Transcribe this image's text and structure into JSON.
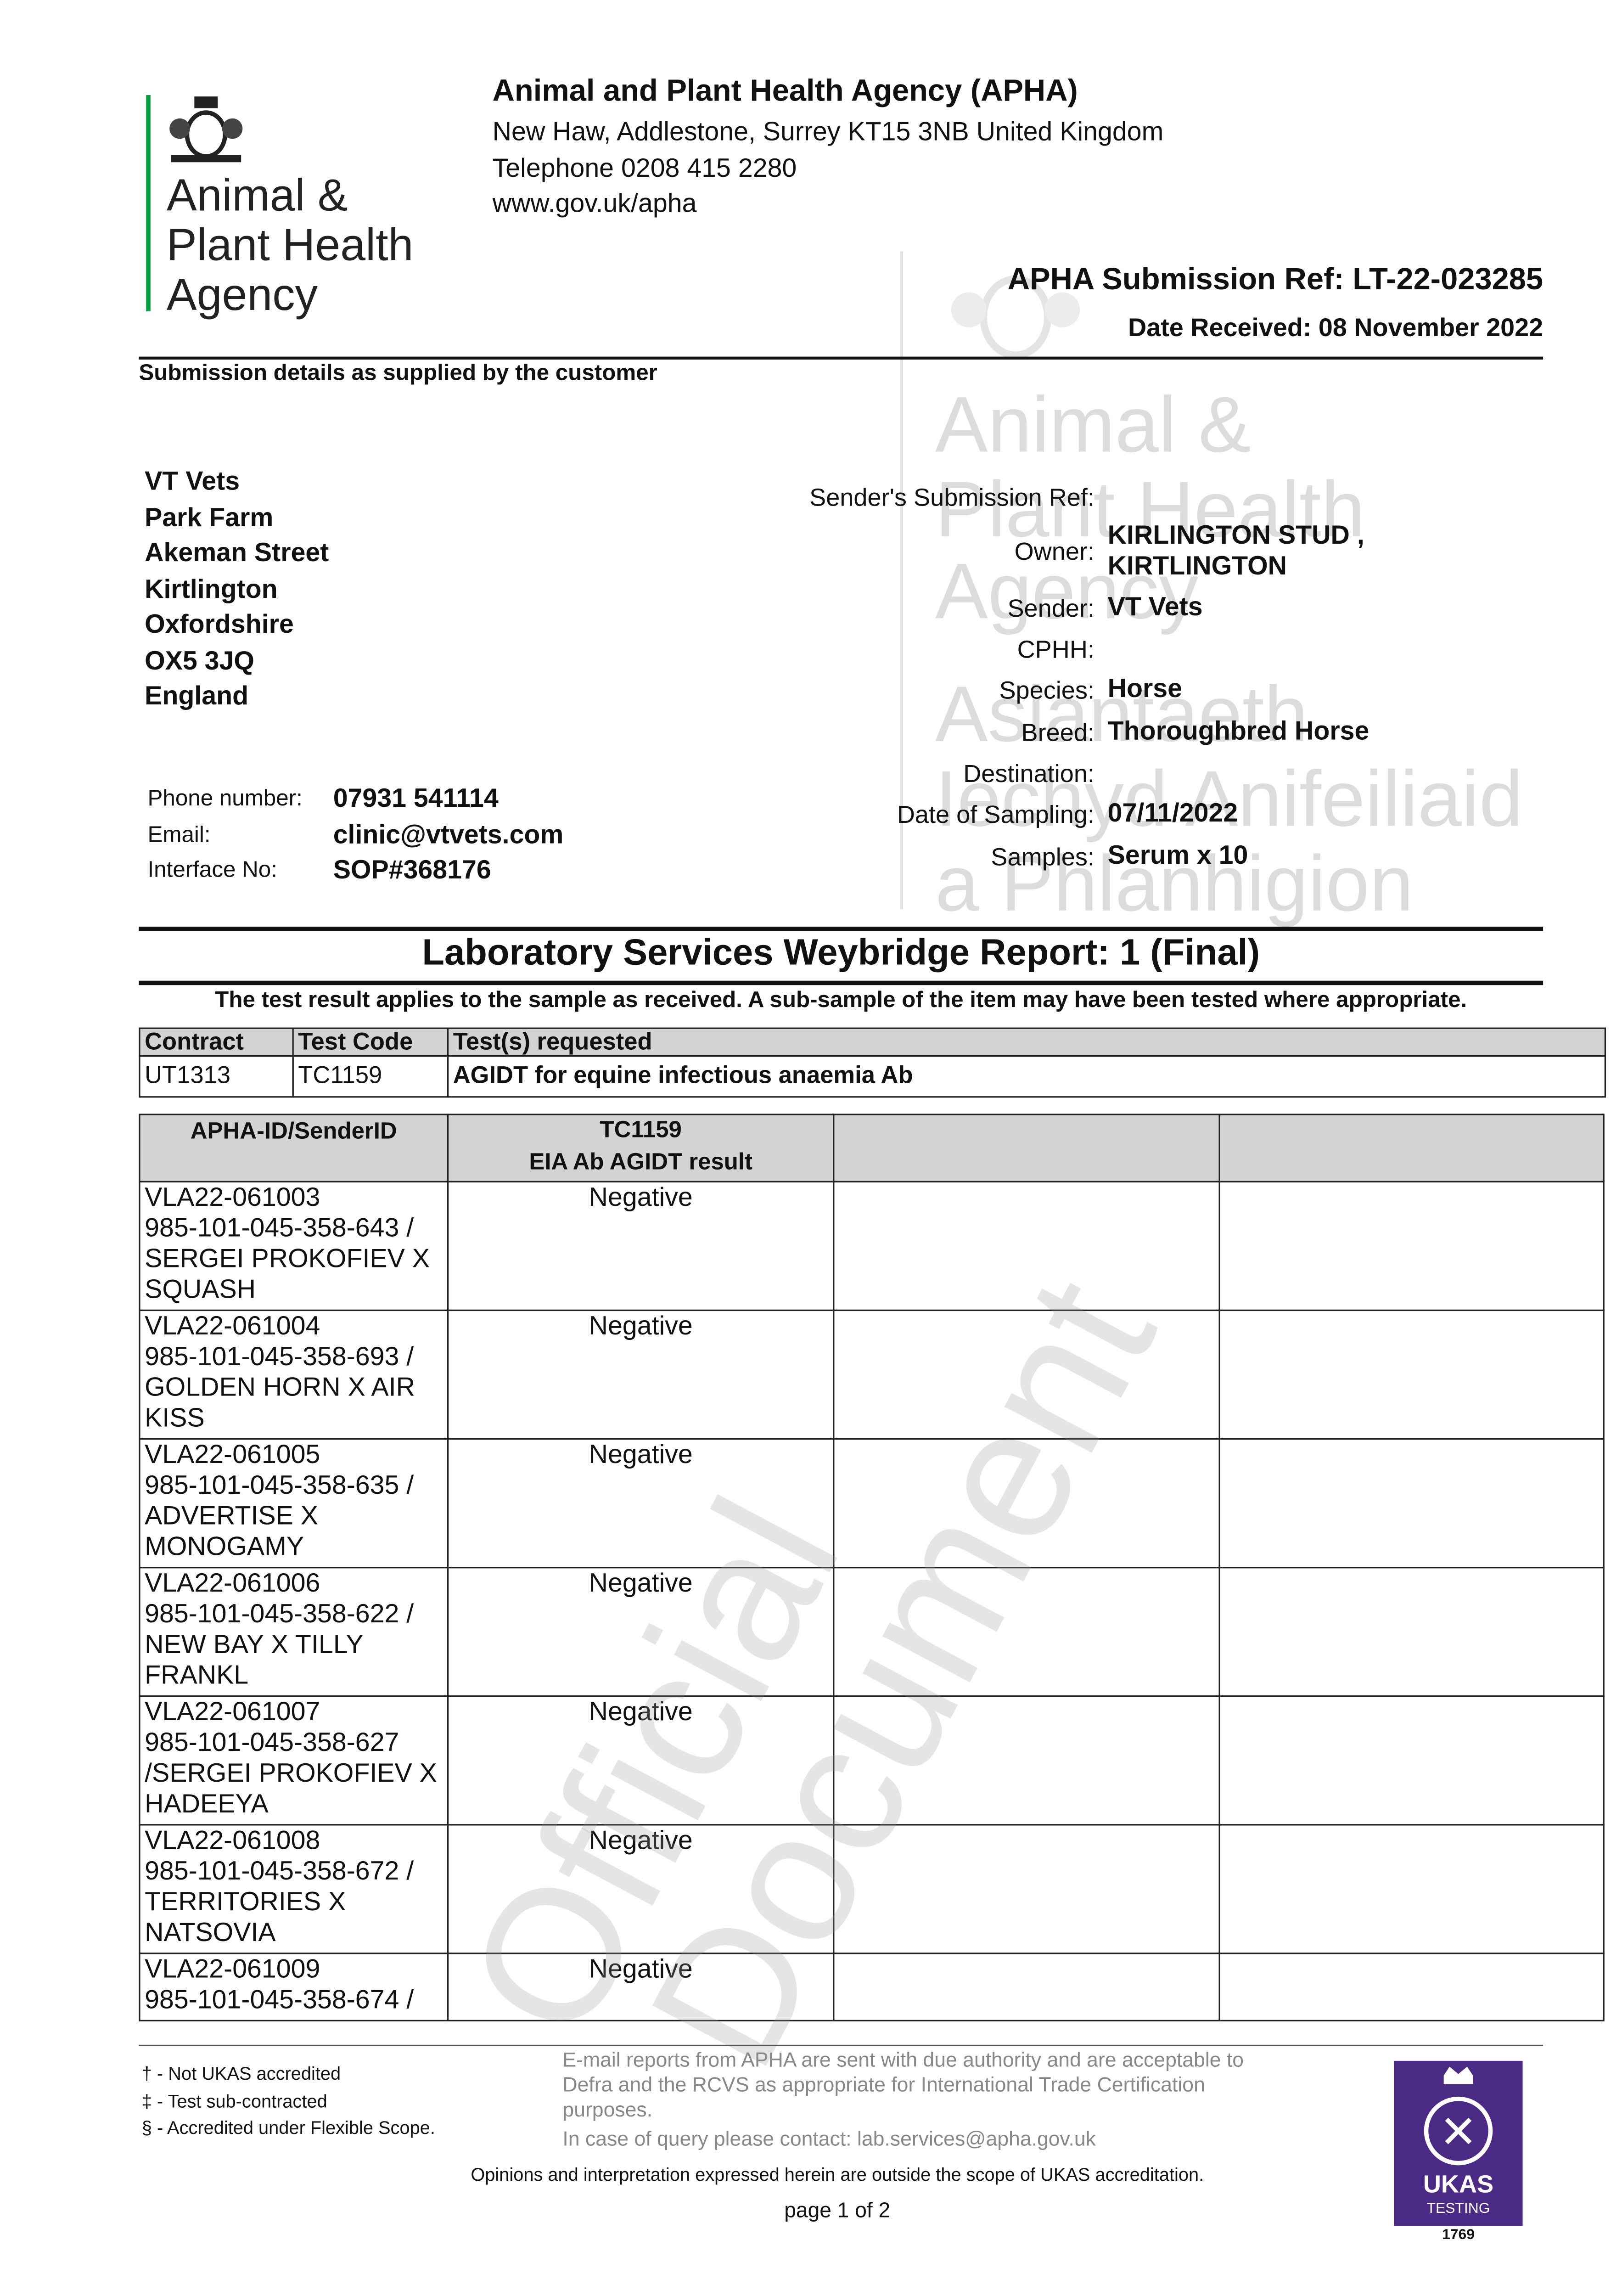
{
  "logo": {
    "lines": [
      "Animal &",
      "Plant Health",
      "Agency"
    ]
  },
  "header": {
    "title": "Animal and Plant Health Agency (APHA)",
    "address": "New Haw, Addlestone, Surrey KT15 3NB United Kingdom",
    "telephone": "Telephone 0208 415 2280",
    "website": "www.gov.uk/apha",
    "submission_ref": "APHA Submission Ref: LT-22-023285",
    "date_received": "Date Received: 08 November 2022"
  },
  "watermark": {
    "lines": [
      "Animal &",
      "Plant Health",
      "Agency",
      "Asiantaeth",
      "Iechyd Anifeiliaid",
      "a Phlanhigion"
    ],
    "stamp": [
      "Official",
      "Document"
    ]
  },
  "submission": {
    "heading": "Submission details as supplied by the customer",
    "address": [
      "VT Vets",
      "Park Farm",
      "Akeman Street",
      "Kirtlington",
      "Oxfordshire",
      "OX5 3JQ",
      "England"
    ],
    "contact": [
      {
        "label": "Phone number:",
        "value": "07931 541114"
      },
      {
        "label": "Email:",
        "value": "clinic@vtvets.com"
      },
      {
        "label": "Interface No:",
        "value": "SOP#368176"
      }
    ],
    "fields": [
      {
        "label": "Sender's Submission Ref:"
      },
      {
        "label": "Owner:",
        "value": "KIRLINGTON STUD , KIRTLINGTON"
      },
      {
        "label": "Sender:",
        "value": "VT Vets"
      },
      {
        "label": "CPHH:"
      },
      {
        "label": "Species:",
        "value": "Horse"
      },
      {
        "label": "Breed:",
        "value": "Thoroughbred Horse"
      },
      {
        "label": "Destination:"
      },
      {
        "label": "Date of Sampling:",
        "value": "07/11/2022"
      },
      {
        "label": "Samples:",
        "value": "Serum x 10"
      }
    ]
  },
  "report": {
    "title": "Laboratory Services Weybridge Report: 1 (Final)",
    "note": "The test result applies to the sample as received. A sub-sample of the item may have been tested where appropriate."
  },
  "tests_table": {
    "headers": [
      "Contract",
      "Test Code",
      "Test(s) requested"
    ],
    "rows": [
      [
        "UT1313",
        "TC1159",
        "AGIDT for equine infectious anaemia Ab"
      ]
    ]
  },
  "results_table": {
    "id_header": "APHA-ID/SenderID",
    "test_code": "TC1159",
    "test_name": "EIA Ab AGIDT result",
    "rows": [
      {
        "apha_id": "VLA22-061003",
        "sender_id": "985-101-045-358-643 / SERGEI PROKOFIEV X SQUASH",
        "result": "Negative"
      },
      {
        "apha_id": "VLA22-061004",
        "sender_id": "985-101-045-358-693 / GOLDEN HORN X AIR KISS",
        "result": "Negative"
      },
      {
        "apha_id": "VLA22-061005",
        "sender_id": "985-101-045-358-635 / ADVERTISE X MONOGAMY",
        "result": "Negative"
      },
      {
        "apha_id": "VLA22-061006",
        "sender_id": "985-101-045-358-622 / NEW BAY X TILLY FRANKL",
        "result": "Negative"
      },
      {
        "apha_id": "VLA22-061007",
        "sender_id": "985-101-045-358-627 /SERGEI PROKOFIEV X HADEEYA",
        "result": "Negative"
      },
      {
        "apha_id": "VLA22-061008",
        "sender_id": "985-101-045-358-672 / TERRITORIES X NATSOVIA",
        "result": "Negative"
      },
      {
        "apha_id": "VLA22-061009",
        "sender_id": "985-101-045-358-674 /",
        "result": "Negative"
      }
    ]
  },
  "footer": {
    "legend": [
      "† - Not UKAS accredited",
      "‡ - Test sub-contracted",
      "§ - Accredited under Flexible Scope."
    ],
    "email_note": [
      "E-mail reports from APHA are sent with due authority and are acceptable to",
      "Defra and the RCVS as appropriate for International Trade Certification",
      "purposes."
    ],
    "contact": "In case of query please contact: lab.services@apha.gov.uk",
    "opinions": "Opinions and interpretation expressed herein are outside the scope of UKAS accreditation.",
    "page": "page 1 of 2",
    "ukas": {
      "name": "UKAS",
      "sub": "TESTING",
      "number": "1769"
    }
  }
}
